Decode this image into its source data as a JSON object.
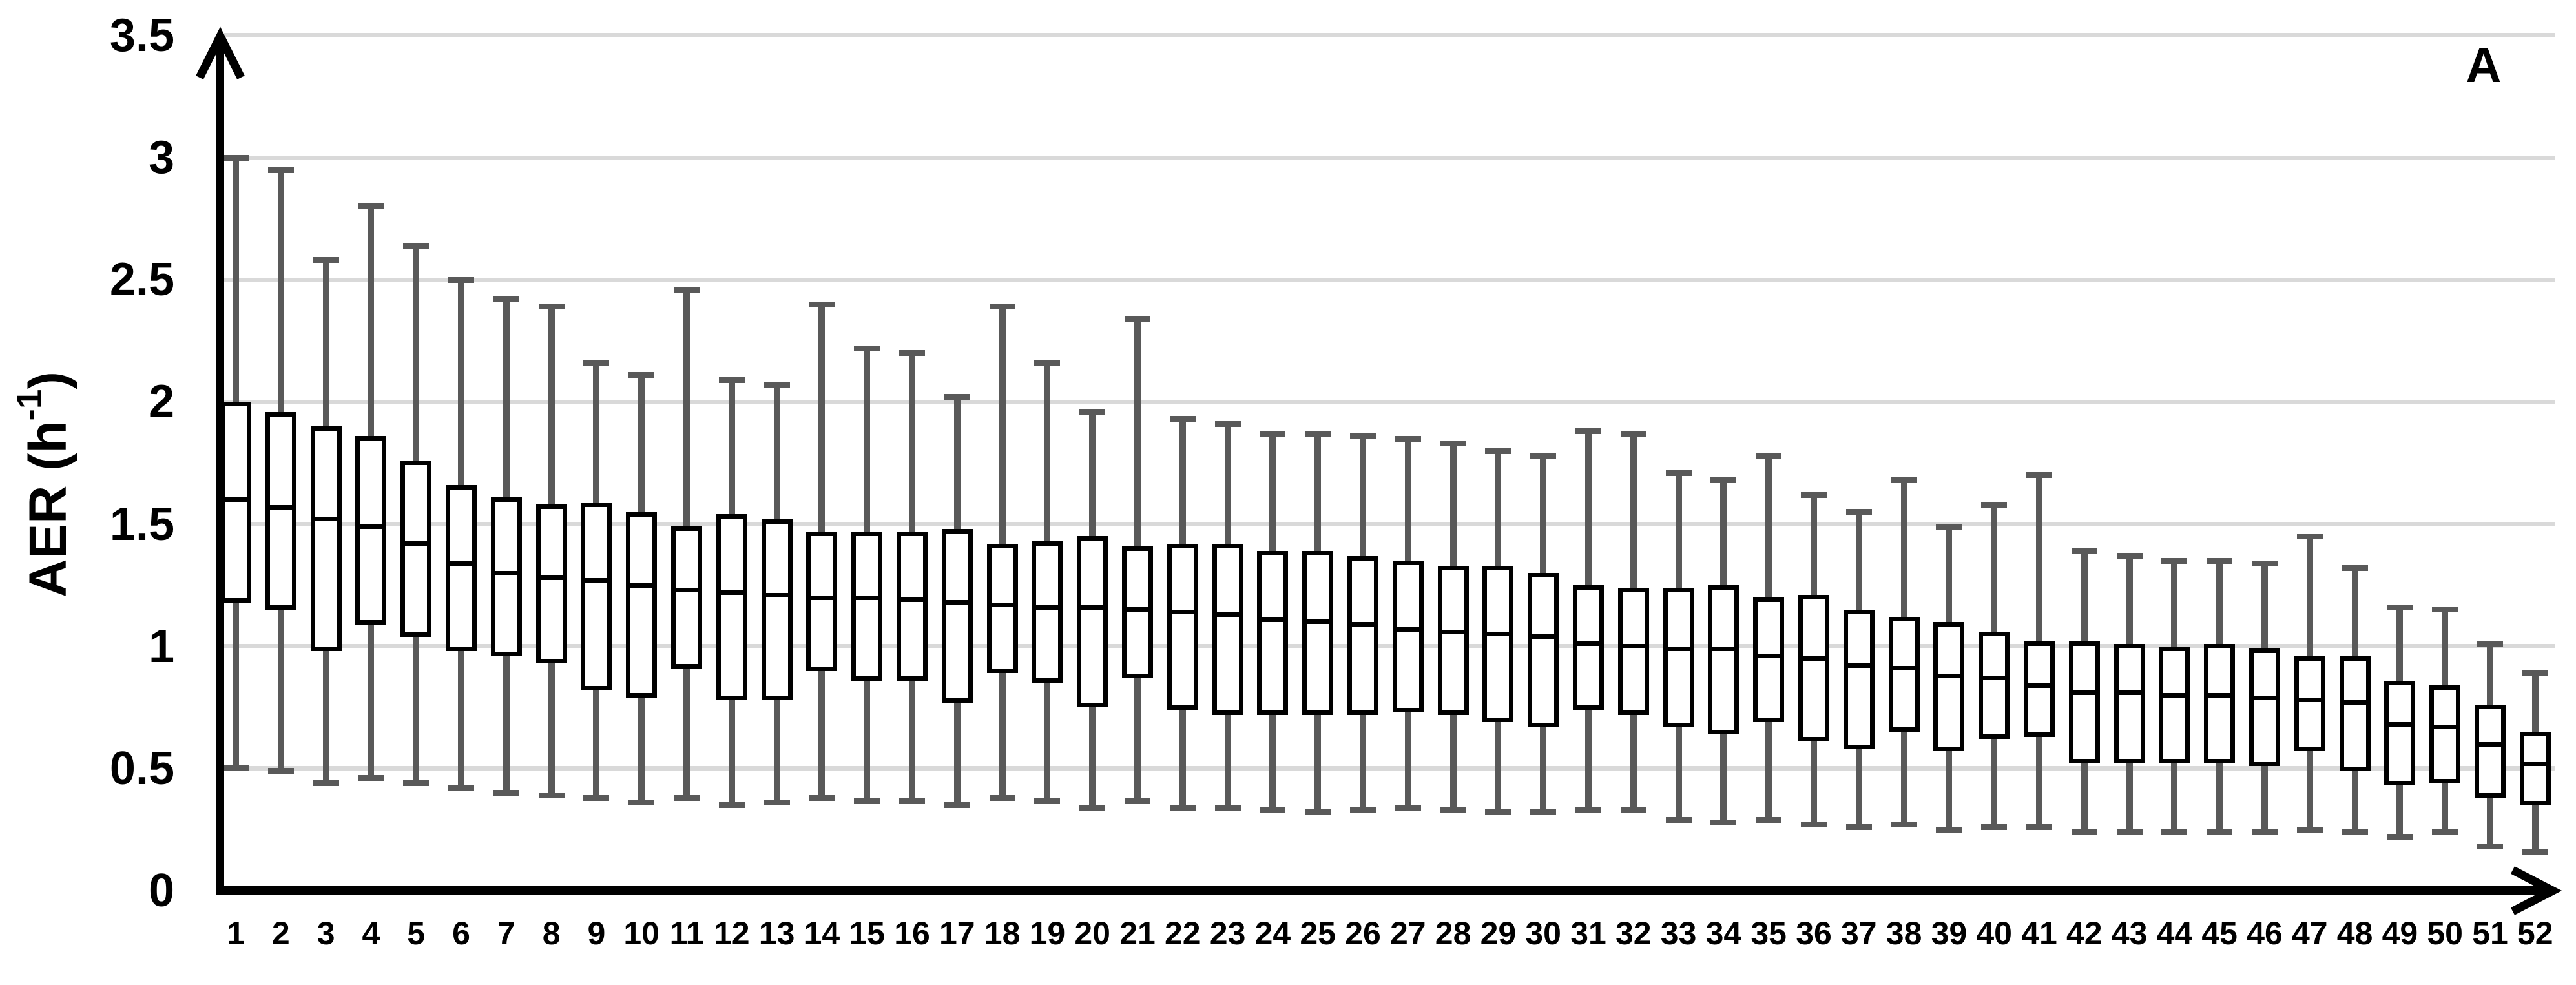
{
  "chart_data": {
    "type": "boxplot",
    "panel_label": "A",
    "title": "",
    "xlabel": "",
    "ylabel": "AER (h-1)",
    "ylabel_parts": {
      "main": "AER (h",
      "sup": "-1",
      "close": ")"
    },
    "ylim": [
      0,
      3.5
    ],
    "yticks": [
      {
        "value": 0,
        "label": "0"
      },
      {
        "value": 0.5,
        "label": "0.5"
      },
      {
        "value": 1,
        "label": "1"
      },
      {
        "value": 1.5,
        "label": "1.5"
      },
      {
        "value": 2,
        "label": "2"
      },
      {
        "value": 2.5,
        "label": "2.5"
      },
      {
        "value": 3,
        "label": "3"
      },
      {
        "value": 3.5,
        "label": "3.5"
      }
    ],
    "grid": true,
    "legend": false,
    "categories": [
      "1",
      "2",
      "3",
      "4",
      "5",
      "6",
      "7",
      "8",
      "9",
      "10",
      "11",
      "12",
      "13",
      "14",
      "15",
      "16",
      "17",
      "18",
      "19",
      "20",
      "21",
      "22",
      "23",
      "24",
      "25",
      "26",
      "27",
      "28",
      "29",
      "30",
      "31",
      "32",
      "33",
      "34",
      "35",
      "36",
      "37",
      "38",
      "39",
      "40",
      "41",
      "42",
      "43",
      "44",
      "45",
      "46",
      "47",
      "48",
      "49",
      "50",
      "51",
      "52"
    ],
    "series": [
      {
        "category": "1",
        "low": 0.5,
        "q1": 1.18,
        "median": 1.6,
        "q3": 2.0,
        "high": 3.0
      },
      {
        "category": "2",
        "low": 0.49,
        "q1": 1.15,
        "median": 1.57,
        "q3": 1.96,
        "high": 2.95
      },
      {
        "category": "3",
        "low": 0.44,
        "q1": 0.98,
        "median": 1.52,
        "q3": 1.9,
        "high": 2.58
      },
      {
        "category": "4",
        "low": 0.46,
        "q1": 1.09,
        "median": 1.49,
        "q3": 1.86,
        "high": 2.8
      },
      {
        "category": "5",
        "low": 0.44,
        "q1": 1.04,
        "median": 1.42,
        "q3": 1.76,
        "high": 2.64
      },
      {
        "category": "6",
        "low": 0.42,
        "q1": 0.98,
        "median": 1.34,
        "q3": 1.66,
        "high": 2.5
      },
      {
        "category": "7",
        "low": 0.4,
        "q1": 0.96,
        "median": 1.3,
        "q3": 1.61,
        "high": 2.42
      },
      {
        "category": "8",
        "low": 0.39,
        "q1": 0.93,
        "median": 1.28,
        "q3": 1.58,
        "high": 2.39
      },
      {
        "category": "9",
        "low": 0.38,
        "q1": 0.82,
        "median": 1.27,
        "q3": 1.59,
        "high": 2.16
      },
      {
        "category": "10",
        "low": 0.36,
        "q1": 0.79,
        "median": 1.25,
        "q3": 1.55,
        "high": 2.11
      },
      {
        "category": "11",
        "low": 0.38,
        "q1": 0.91,
        "median": 1.23,
        "q3": 1.49,
        "high": 2.46
      },
      {
        "category": "12",
        "low": 0.35,
        "q1": 0.78,
        "median": 1.22,
        "q3": 1.54,
        "high": 2.09
      },
      {
        "category": "13",
        "low": 0.36,
        "q1": 0.78,
        "median": 1.21,
        "q3": 1.52,
        "high": 2.07
      },
      {
        "category": "14",
        "low": 0.38,
        "q1": 0.9,
        "median": 1.2,
        "q3": 1.47,
        "high": 2.4
      },
      {
        "category": "15",
        "low": 0.37,
        "q1": 0.86,
        "median": 1.2,
        "q3": 1.47,
        "high": 2.22
      },
      {
        "category": "16",
        "low": 0.37,
        "q1": 0.86,
        "median": 1.19,
        "q3": 1.47,
        "high": 2.2
      },
      {
        "category": "17",
        "low": 0.35,
        "q1": 0.77,
        "median": 1.18,
        "q3": 1.48,
        "high": 2.02
      },
      {
        "category": "18",
        "low": 0.38,
        "q1": 0.89,
        "median": 1.17,
        "q3": 1.42,
        "high": 2.39
      },
      {
        "category": "19",
        "low": 0.37,
        "q1": 0.85,
        "median": 1.16,
        "q3": 1.43,
        "high": 2.16
      },
      {
        "category": "20",
        "low": 0.34,
        "q1": 0.75,
        "median": 1.16,
        "q3": 1.45,
        "high": 1.96
      },
      {
        "category": "21",
        "low": 0.37,
        "q1": 0.87,
        "median": 1.15,
        "q3": 1.41,
        "high": 2.34
      },
      {
        "category": "22",
        "low": 0.34,
        "q1": 0.74,
        "median": 1.14,
        "q3": 1.42,
        "high": 1.93
      },
      {
        "category": "23",
        "low": 0.34,
        "q1": 0.72,
        "median": 1.13,
        "q3": 1.42,
        "high": 1.91
      },
      {
        "category": "24",
        "low": 0.33,
        "q1": 0.72,
        "median": 1.11,
        "q3": 1.39,
        "high": 1.87
      },
      {
        "category": "25",
        "low": 0.32,
        "q1": 0.72,
        "median": 1.1,
        "q3": 1.39,
        "high": 1.87
      },
      {
        "category": "26",
        "low": 0.33,
        "q1": 0.72,
        "median": 1.09,
        "q3": 1.37,
        "high": 1.86
      },
      {
        "category": "27",
        "low": 0.34,
        "q1": 0.73,
        "median": 1.07,
        "q3": 1.35,
        "high": 1.85
      },
      {
        "category": "28",
        "low": 0.33,
        "q1": 0.72,
        "median": 1.06,
        "q3": 1.33,
        "high": 1.83
      },
      {
        "category": "29",
        "low": 0.32,
        "q1": 0.69,
        "median": 1.05,
        "q3": 1.33,
        "high": 1.8
      },
      {
        "category": "30",
        "low": 0.32,
        "q1": 0.67,
        "median": 1.04,
        "q3": 1.3,
        "high": 1.78
      },
      {
        "category": "31",
        "low": 0.33,
        "q1": 0.74,
        "median": 1.01,
        "q3": 1.25,
        "high": 1.88
      },
      {
        "category": "32",
        "low": 0.33,
        "q1": 0.72,
        "median": 1.0,
        "q3": 1.24,
        "high": 1.87
      },
      {
        "category": "33",
        "low": 0.29,
        "q1": 0.67,
        "median": 0.99,
        "q3": 1.24,
        "high": 1.71
      },
      {
        "category": "34",
        "low": 0.28,
        "q1": 0.64,
        "median": 0.99,
        "q3": 1.25,
        "high": 1.68
      },
      {
        "category": "35",
        "low": 0.29,
        "q1": 0.69,
        "median": 0.96,
        "q3": 1.2,
        "high": 1.78
      },
      {
        "category": "36",
        "low": 0.27,
        "q1": 0.61,
        "median": 0.95,
        "q3": 1.21,
        "high": 1.62
      },
      {
        "category": "37",
        "low": 0.26,
        "q1": 0.58,
        "median": 0.92,
        "q3": 1.15,
        "high": 1.55
      },
      {
        "category": "38",
        "low": 0.27,
        "q1": 0.65,
        "median": 0.91,
        "q3": 1.12,
        "high": 1.68
      },
      {
        "category": "39",
        "low": 0.25,
        "q1": 0.57,
        "median": 0.88,
        "q3": 1.1,
        "high": 1.49
      },
      {
        "category": "40",
        "low": 0.26,
        "q1": 0.62,
        "median": 0.87,
        "q3": 1.06,
        "high": 1.58
      },
      {
        "category": "41",
        "low": 0.26,
        "q1": 0.63,
        "median": 0.84,
        "q3": 1.02,
        "high": 1.7
      },
      {
        "category": "42",
        "low": 0.24,
        "q1": 0.52,
        "median": 0.81,
        "q3": 1.02,
        "high": 1.39
      },
      {
        "category": "43",
        "low": 0.24,
        "q1": 0.52,
        "median": 0.81,
        "q3": 1.01,
        "high": 1.37
      },
      {
        "category": "44",
        "low": 0.24,
        "q1": 0.52,
        "median": 0.8,
        "q3": 1.0,
        "high": 1.35
      },
      {
        "category": "45",
        "low": 0.24,
        "q1": 0.52,
        "median": 0.8,
        "q3": 1.01,
        "high": 1.35
      },
      {
        "category": "46",
        "low": 0.24,
        "q1": 0.51,
        "median": 0.79,
        "q3": 0.99,
        "high": 1.34
      },
      {
        "category": "47",
        "low": 0.25,
        "q1": 0.57,
        "median": 0.78,
        "q3": 0.96,
        "high": 1.45
      },
      {
        "category": "48",
        "low": 0.24,
        "q1": 0.49,
        "median": 0.77,
        "q3": 0.96,
        "high": 1.32
      },
      {
        "category": "49",
        "low": 0.22,
        "q1": 0.43,
        "median": 0.68,
        "q3": 0.86,
        "high": 1.16
      },
      {
        "category": "50",
        "low": 0.24,
        "q1": 0.44,
        "median": 0.67,
        "q3": 0.84,
        "high": 1.15
      },
      {
        "category": "51",
        "low": 0.18,
        "q1": 0.38,
        "median": 0.6,
        "q3": 0.76,
        "high": 1.01
      },
      {
        "category": "52",
        "low": 0.16,
        "q1": 0.35,
        "median": 0.52,
        "q3": 0.65,
        "high": 0.89
      }
    ],
    "colors": {
      "box_border": "#000000",
      "box_fill": "#ffffff",
      "median": "#000000",
      "whisker": "#595959",
      "gridline": "#d9d9d9",
      "axis": "#000000",
      "text": "#000000",
      "background": "#ffffff"
    }
  }
}
